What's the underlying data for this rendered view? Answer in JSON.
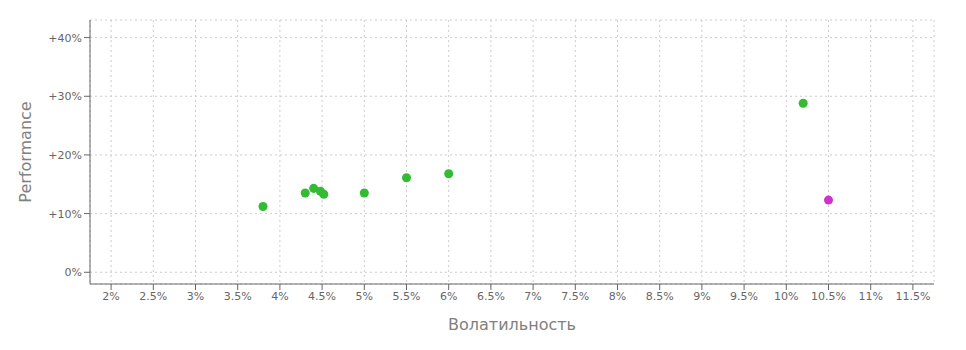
{
  "chart_data": {
    "type": "scatter",
    "xlabel": "Волатильность",
    "ylabel": "Performance",
    "series": [
      {
        "color": "#33bb33",
        "x": [
          3.8,
          4.3,
          4.4,
          4.48,
          4.52,
          5.0,
          5.5,
          6.0,
          10.2
        ],
        "values": [
          11.2,
          13.5,
          14.3,
          13.8,
          13.3,
          13.5,
          16.1,
          16.8,
          28.8
        ]
      },
      {
        "color": "#cc33cc",
        "x": [
          10.5
        ],
        "values": [
          12.3
        ]
      }
    ],
    "xlim": [
      1.75,
      11.75
    ],
    "ylim": [
      -2,
      43
    ],
    "xticks": [
      {
        "value": 2.0,
        "label": "2%"
      },
      {
        "value": 2.5,
        "label": "2.5%"
      },
      {
        "value": 3.0,
        "label": "3%"
      },
      {
        "value": 3.5,
        "label": "3.5%"
      },
      {
        "value": 4.0,
        "label": "4%"
      },
      {
        "value": 4.5,
        "label": "4.5%"
      },
      {
        "value": 5.0,
        "label": "5%"
      },
      {
        "value": 5.5,
        "label": "5.5%"
      },
      {
        "value": 6.0,
        "label": "6%"
      },
      {
        "value": 6.5,
        "label": "6.5%"
      },
      {
        "value": 7.0,
        "label": "7%"
      },
      {
        "value": 7.5,
        "label": "7.5%"
      },
      {
        "value": 8.0,
        "label": "8%"
      },
      {
        "value": 8.5,
        "label": "8.5%"
      },
      {
        "value": 9.0,
        "label": "9%"
      },
      {
        "value": 9.5,
        "label": "9.5%"
      },
      {
        "value": 10.0,
        "label": "10%"
      },
      {
        "value": 10.5,
        "label": "10.5%"
      },
      {
        "value": 11.0,
        "label": "11%"
      },
      {
        "value": 11.5,
        "label": "11.5%"
      }
    ],
    "yticks": [
      {
        "value": 0,
        "label": "0%"
      },
      {
        "value": 10,
        "label": "+10%"
      },
      {
        "value": 20,
        "label": "+20%"
      },
      {
        "value": 30,
        "label": "+30%"
      },
      {
        "value": 40,
        "label": "+40%"
      }
    ],
    "grid": true
  }
}
